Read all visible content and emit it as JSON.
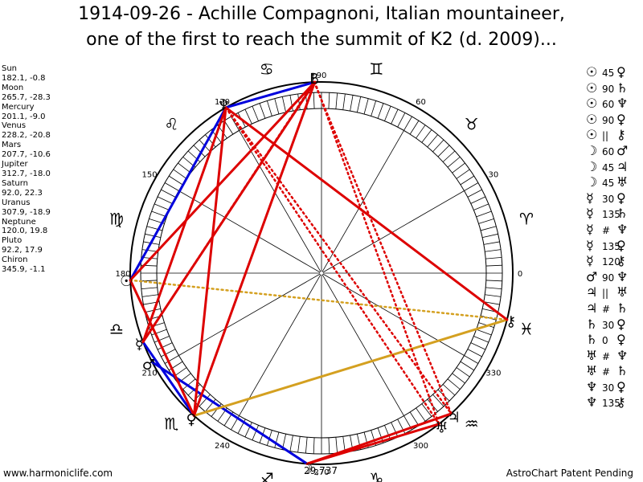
{
  "title": {
    "line1": "1914-09-26 - Achille Compagnoni, Italian mountaineer,",
    "line2": "one of the first to reach the summit of K2 (d. 2009)..."
  },
  "planets": [
    {
      "name": "Sun",
      "coords": "182.1, -0.8"
    },
    {
      "name": "Moon",
      "coords": "265.7, -28.3"
    },
    {
      "name": "Mercury",
      "coords": "201.1, -9.0"
    },
    {
      "name": "Venus",
      "coords": "228.2, -20.8"
    },
    {
      "name": "Mars",
      "coords": "207.7, -10.6"
    },
    {
      "name": "Jupiter",
      "coords": "312.7, -18.0"
    },
    {
      "name": "Saturn",
      "coords": "92.0, 22.3"
    },
    {
      "name": "Uranus",
      "coords": "307.9, -18.9"
    },
    {
      "name": "Neptune",
      "coords": "120.0, 19.8"
    },
    {
      "name": "Pluto",
      "coords": "92.2, 17.9"
    },
    {
      "name": "Chiron",
      "coords": "345.9, -1.1"
    }
  ],
  "aspects": [
    {
      "p1": "☉",
      "aspect": "45",
      "p2": "♀"
    },
    {
      "p1": "☉",
      "aspect": "90",
      "p2": "♄"
    },
    {
      "p1": "☉",
      "aspect": "60",
      "p2": "♆"
    },
    {
      "p1": "☉",
      "aspect": "90",
      "p2": "♀"
    },
    {
      "p1": "☉",
      "aspect": "||",
      "p2": "⚷"
    },
    {
      "p1": "☽",
      "aspect": "60",
      "p2": "♂"
    },
    {
      "p1": "☽",
      "aspect": "45",
      "p2": "♃"
    },
    {
      "p1": "☽",
      "aspect": "45",
      "p2": "♅"
    },
    {
      "p1": "☿",
      "aspect": "30",
      "p2": "♀"
    },
    {
      "p1": "☿",
      "aspect": "135",
      "p2": "♄"
    },
    {
      "p1": "☿",
      "aspect": "#",
      "p2": "♆"
    },
    {
      "p1": "☿",
      "aspect": "135",
      "p2": "♀"
    },
    {
      "p1": "☿",
      "aspect": "120",
      "p2": "⚷"
    },
    {
      "p1": "♂",
      "aspect": "90",
      "p2": "♆"
    },
    {
      "p1": "♃",
      "aspect": "||",
      "p2": "♅"
    },
    {
      "p1": "♃",
      "aspect": "#",
      "p2": "♄"
    },
    {
      "p1": "♄",
      "aspect": "30",
      "p2": "♀"
    },
    {
      "p1": "♄",
      "aspect": "0",
      "p2": "♀"
    },
    {
      "p1": "♅",
      "aspect": "#",
      "p2": "♆"
    },
    {
      "p1": "♅",
      "aspect": "#",
      "p2": "♄"
    },
    {
      "p1": "♆",
      "aspect": "30",
      "p2": "♀"
    },
    {
      "p1": "♆",
      "aspect": "135",
      "p2": "⚷"
    }
  ],
  "wheel": {
    "degree_labels": [
      "0",
      "30",
      "60",
      "90",
      "120",
      "150",
      "180",
      "210",
      "240",
      "270",
      "300",
      "330"
    ],
    "zodiac_signs": [
      "♈",
      "♉",
      "♊",
      "♋",
      "♌",
      "♍",
      "♎",
      "♏",
      "♐",
      "♑",
      "♒",
      "♓"
    ],
    "bodies": [
      {
        "glyph": "☉",
        "lon": 182.1
      },
      {
        "glyph": "☽",
        "lon": 265.7
      },
      {
        "glyph": "☿",
        "lon": 201.1
      },
      {
        "glyph": "♀",
        "lon": 228.2
      },
      {
        "glyph": "♂",
        "lon": 207.7
      },
      {
        "glyph": "♃",
        "lon": 312.7
      },
      {
        "glyph": "♄",
        "lon": 92.0
      },
      {
        "glyph": "♅",
        "lon": 307.9
      },
      {
        "glyph": "♆",
        "lon": 120.0
      },
      {
        "glyph": "♇",
        "lon": 92.2
      },
      {
        "glyph": "⚷",
        "lon": 345.9
      }
    ],
    "aspect_lines": [
      {
        "from": 182.1,
        "to": 120.0,
        "color": "#0000dd",
        "style": "solid"
      },
      {
        "from": 92.0,
        "to": 120.0,
        "color": "#0000dd",
        "style": "solid"
      },
      {
        "from": 201.1,
        "to": 228.2,
        "color": "#0000dd",
        "style": "solid"
      },
      {
        "from": 207.7,
        "to": 265.7,
        "color": "#0000dd",
        "style": "solid"
      },
      {
        "from": 182.1,
        "to": 345.9,
        "color": "#d4a020",
        "style": "dotted"
      },
      {
        "from": 228.2,
        "to": 345.9,
        "color": "#d4a020",
        "style": "solid"
      },
      {
        "from": 182.1,
        "to": 92.0,
        "color": "#dd0000",
        "style": "solid"
      },
      {
        "from": 182.1,
        "to": 228.2,
        "color": "#dd0000",
        "style": "solid"
      },
      {
        "from": 120.0,
        "to": 345.9,
        "color": "#dd0000",
        "style": "solid"
      },
      {
        "from": 120.0,
        "to": 201.1,
        "color": "#dd0000",
        "style": "solid"
      },
      {
        "from": 92.0,
        "to": 201.1,
        "color": "#dd0000",
        "style": "solid"
      },
      {
        "from": 92.0,
        "to": 228.2,
        "color": "#dd0000",
        "style": "solid"
      },
      {
        "from": 120.0,
        "to": 228.2,
        "color": "#dd0000",
        "style": "solid"
      },
      {
        "from": 265.7,
        "to": 307.9,
        "color": "#dd0000",
        "style": "solid"
      },
      {
        "from": 265.7,
        "to": 312.7,
        "color": "#dd0000",
        "style": "solid"
      },
      {
        "from": 92.0,
        "to": 307.9,
        "color": "#dd0000",
        "style": "dotted"
      },
      {
        "from": 92.2,
        "to": 312.7,
        "color": "#dd0000",
        "style": "dotted"
      },
      {
        "from": 120.0,
        "to": 307.9,
        "color": "#dd0000",
        "style": "dotted"
      },
      {
        "from": 120.0,
        "to": 312.7,
        "color": "#dd0000",
        "style": "dotted"
      },
      {
        "from": 92.0,
        "to": 228.2,
        "color": "#dd0000",
        "style": "dotted"
      },
      {
        "from": 92.2,
        "to": 201.1,
        "color": "#dd0000",
        "style": "dotted"
      }
    ]
  },
  "footer": {
    "website": "www.harmoniclife.com",
    "center_value": "29,737",
    "patent": "AstroChart Patent Pending"
  }
}
